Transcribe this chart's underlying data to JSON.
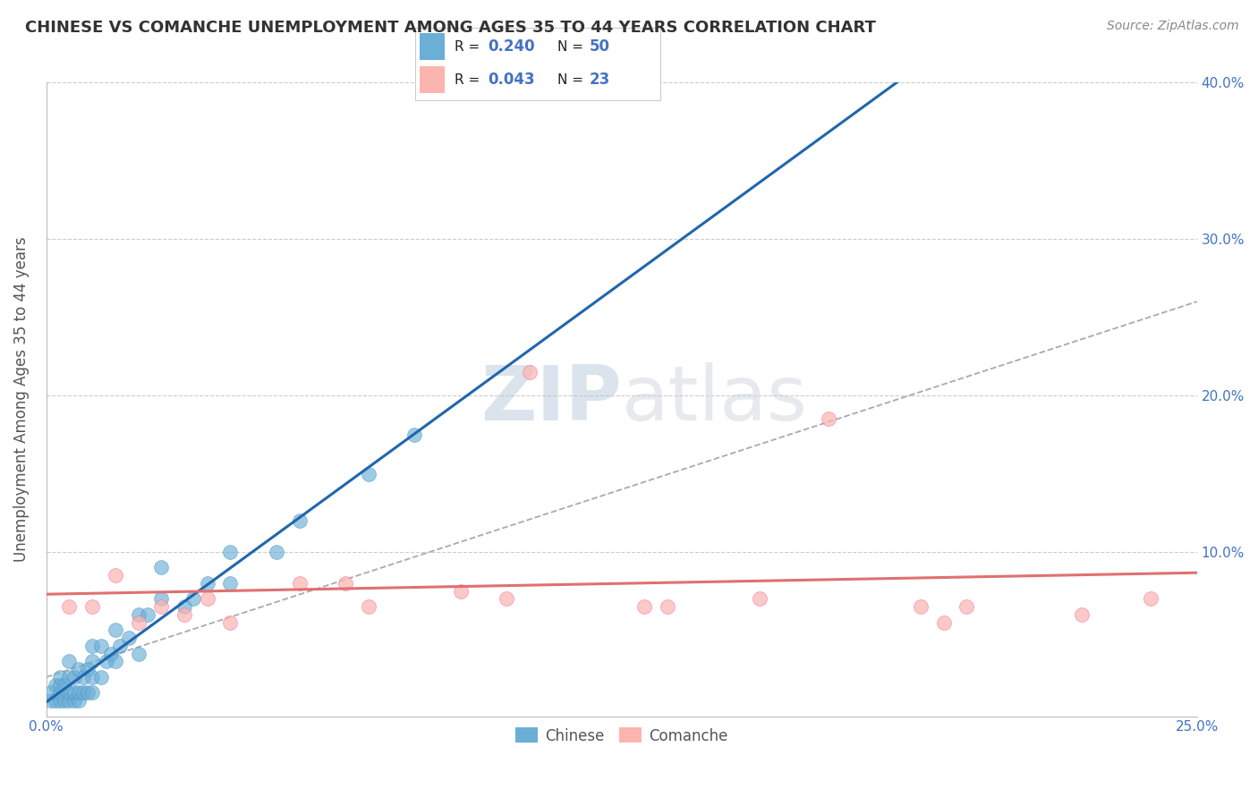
{
  "title": "CHINESE VS COMANCHE UNEMPLOYMENT AMONG AGES 35 TO 44 YEARS CORRELATION CHART",
  "source": "Source: ZipAtlas.com",
  "ylabel": "Unemployment Among Ages 35 to 44 years",
  "xlim": [
    0.0,
    0.25
  ],
  "ylim": [
    -0.005,
    0.4
  ],
  "xticks": [
    0.0,
    0.25
  ],
  "xtick_labels": [
    "0.0%",
    "25.0%"
  ],
  "yticks": [
    0.0,
    0.1,
    0.2,
    0.3,
    0.4
  ],
  "ytick_labels_left": [
    "",
    "",
    "",
    "",
    ""
  ],
  "ytick_labels_right": [
    "",
    "10.0%",
    "20.0%",
    "30.0%",
    "40.0%"
  ],
  "chinese_color": "#6baed6",
  "chinese_edge_color": "#4292c6",
  "comanche_color": "#fbb4ae",
  "comanche_edge_color": "#f768a1",
  "chinese_line_color": "#2166ac",
  "comanche_line_color": "#e07070",
  "gray_dash_color": "#aaaaaa",
  "chinese_R": 0.24,
  "chinese_N": 50,
  "comanche_R": 0.043,
  "comanche_N": 23,
  "chinese_x": [
    0.001,
    0.001,
    0.002,
    0.002,
    0.003,
    0.003,
    0.003,
    0.003,
    0.004,
    0.004,
    0.005,
    0.005,
    0.005,
    0.005,
    0.006,
    0.006,
    0.006,
    0.007,
    0.007,
    0.007,
    0.008,
    0.008,
    0.009,
    0.009,
    0.01,
    0.01,
    0.01,
    0.01,
    0.012,
    0.012,
    0.013,
    0.014,
    0.015,
    0.015,
    0.016,
    0.018,
    0.02,
    0.02,
    0.022,
    0.025,
    0.025,
    0.03,
    0.032,
    0.035,
    0.04,
    0.04,
    0.05,
    0.055,
    0.07,
    0.08
  ],
  "chinese_y": [
    0.005,
    0.01,
    0.005,
    0.015,
    0.005,
    0.01,
    0.015,
    0.02,
    0.005,
    0.015,
    0.005,
    0.01,
    0.02,
    0.03,
    0.005,
    0.01,
    0.02,
    0.005,
    0.01,
    0.025,
    0.01,
    0.02,
    0.01,
    0.025,
    0.01,
    0.02,
    0.03,
    0.04,
    0.02,
    0.04,
    0.03,
    0.035,
    0.03,
    0.05,
    0.04,
    0.045,
    0.035,
    0.06,
    0.06,
    0.07,
    0.09,
    0.065,
    0.07,
    0.08,
    0.08,
    0.1,
    0.1,
    0.12,
    0.15,
    0.175
  ],
  "comanche_x": [
    0.005,
    0.01,
    0.015,
    0.02,
    0.025,
    0.03,
    0.035,
    0.04,
    0.055,
    0.065,
    0.07,
    0.09,
    0.1,
    0.105,
    0.13,
    0.135,
    0.155,
    0.17,
    0.19,
    0.195,
    0.2,
    0.225,
    0.24
  ],
  "comanche_y": [
    0.065,
    0.065,
    0.085,
    0.055,
    0.065,
    0.06,
    0.07,
    0.055,
    0.08,
    0.08,
    0.065,
    0.075,
    0.07,
    0.215,
    0.065,
    0.065,
    0.07,
    0.185,
    0.065,
    0.055,
    0.065,
    0.06,
    0.07
  ],
  "watermark_text": "ZIPatlas",
  "legend_label_chinese": "Chinese",
  "legend_label_comanche": "Comanche",
  "background_color": "#ffffff",
  "grid_color": "#cccccc",
  "title_color": "#333333",
  "axis_label_color": "#555555",
  "tick_label_color": "#4472c4",
  "title_fontsize": 13,
  "source_fontsize": 10,
  "ylabel_fontsize": 12,
  "tick_fontsize": 11
}
